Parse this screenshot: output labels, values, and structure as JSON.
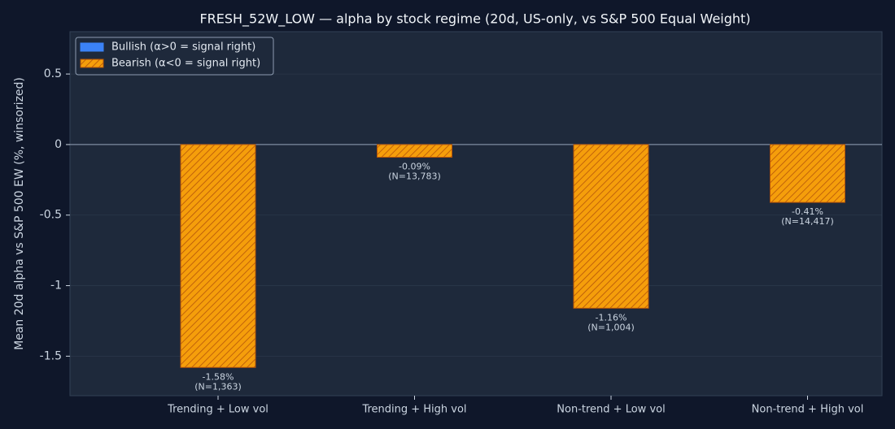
{
  "chart_data": {
    "type": "bar",
    "title": "FRESH_52W_LOW — alpha by stock regime (20d, US-only, vs S&P 500 Equal Weight)",
    "ylabel": "Mean 20d alpha vs S&P 500 EW (%, winsorized)",
    "categories": [
      "Trending + Low vol",
      "Trending + High vol",
      "Non-trend + Low vol",
      "Non-trend + High vol"
    ],
    "series": [
      {
        "name": "Bullish (α>0 = signal right)",
        "color": "#3b82f6",
        "values": [
          null,
          null,
          null,
          null
        ]
      },
      {
        "name": "Bearish (α<0 = signal right)",
        "color": "#f59e0b",
        "hatch": true,
        "values": [
          -1.58,
          -0.09,
          -1.16,
          -0.41
        ],
        "value_labels": [
          "-1.58%",
          "-0.09%",
          "-1.16%",
          "-0.41%"
        ],
        "annotations": [
          "(N=1,363)",
          "(N=13,783)",
          "(N=1,004)",
          "(N=14,417)"
        ]
      }
    ],
    "ylim": [
      -1.78,
      0.8
    ],
    "yticks": [
      -1.5,
      -1.0,
      -0.5,
      0.0,
      0.5
    ],
    "grid": true,
    "legend": "upper left"
  }
}
